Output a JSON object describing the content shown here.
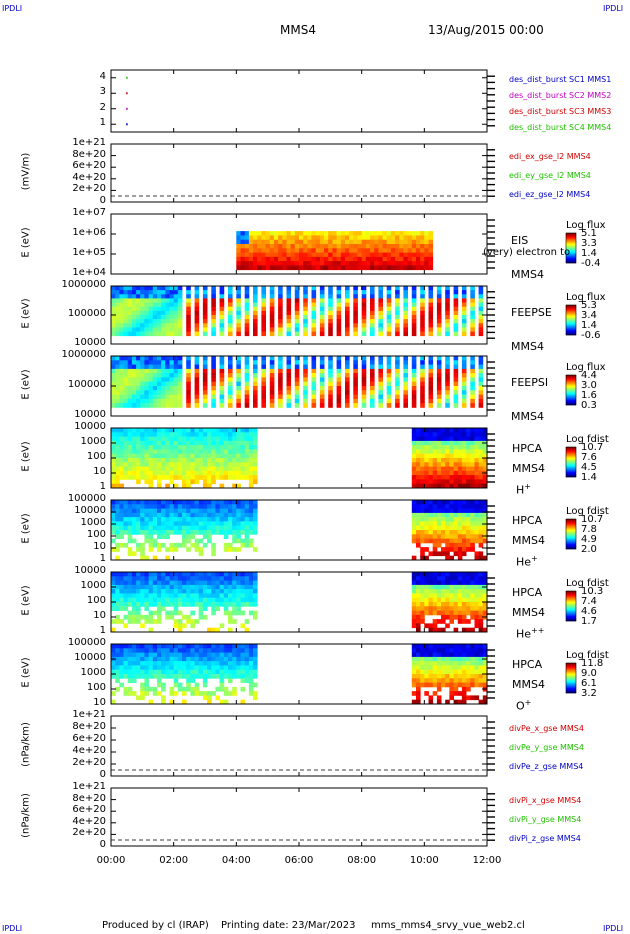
{
  "header": {
    "corner_tl": "IPDLI",
    "corner_tr": "IPDLI",
    "corner_bl": "IPDLI",
    "corner_br": "IPDLI",
    "spacecraft": "MMS4",
    "date": "13/Aug/2015 00:00"
  },
  "footer": {
    "produced": "Produced by cl (IRAP)",
    "printing": "Printing date: 23/Mar/2023",
    "file": "mms_mms4_srvy_vue_web2.cl"
  },
  "colors": {
    "blue": "#0000c0",
    "magenta": "#c000c0",
    "red": "#d00000",
    "green": "#20c000"
  },
  "chart_data": [
    {
      "type": "scatter",
      "panel": "burst",
      "xlabel": "",
      "ylabel": "",
      "xlim": [
        "00:00",
        "12:00"
      ],
      "yticks": [
        "4",
        "3",
        "2",
        "1"
      ],
      "series": [
        {
          "name": "des_dist_burst SC1 MMS1",
          "color": "#0000c0",
          "x": [
            "00:30"
          ],
          "y": [
            1
          ]
        },
        {
          "name": "des_dist_burst SC2 MMS2",
          "color": "#c000c0",
          "x": [
            "00:30"
          ],
          "y": [
            2
          ]
        },
        {
          "name": "des_dist_burst SC3 MMS3",
          "color": "#d00000",
          "x": [
            "00:30"
          ],
          "y": [
            3
          ]
        },
        {
          "name": "des_dist_burst SC4 MMS4",
          "color": "#20c000",
          "x": [
            "00:30"
          ],
          "y": [
            4
          ]
        }
      ]
    },
    {
      "type": "line",
      "panel": "edi",
      "ylabel": "(mV/m)",
      "yticks": [
        "1e+21",
        "8e+20",
        "6e+20",
        "4e+20",
        "2e+20",
        "0"
      ],
      "series": [
        {
          "name": "edi_ex_gse_l2 MMS4",
          "color": "#d00000"
        },
        {
          "name": "edi_ey_gse_l2 MMS4",
          "color": "#20c000"
        },
        {
          "name": "edi_ez_gse_l2 MMS4",
          "color": "#0000c0"
        }
      ]
    },
    {
      "type": "heatmap",
      "panel": "eis",
      "ylabel": "E (eV)",
      "yticks": [
        "1e+07",
        "1e+06",
        "1e+05",
        "1e+04"
      ],
      "labels": [
        "EIS",
        "MMS4"
      ],
      "overlay": "(very) electron to",
      "cb_title": "Log flux",
      "cb_ticks": [
        "5.1",
        "3.3",
        "1.4",
        "-0.4"
      ],
      "time_range": [
        "04:00",
        "10:15"
      ]
    },
    {
      "type": "heatmap",
      "panel": "feepse",
      "ylabel": "E (eV)",
      "yticks": [
        "1000000",
        "100000",
        "10000"
      ],
      "labels": [
        "FEEPSE",
        "MMS4"
      ],
      "cb_title": "Log flux",
      "cb_ticks": [
        "5.3",
        "3.4",
        "1.4",
        "-0.6"
      ],
      "time_range": [
        "00:00",
        "12:00"
      ]
    },
    {
      "type": "heatmap",
      "panel": "feepsi",
      "ylabel": "E (eV)",
      "yticks": [
        "1000000",
        "100000",
        "10000"
      ],
      "labels": [
        "FEEPSI",
        "MMS4"
      ],
      "cb_title": "Log flux",
      "cb_ticks": [
        "4.4",
        "3.0",
        "1.6",
        "0.3"
      ],
      "time_range": [
        "00:00",
        "12:00"
      ]
    },
    {
      "type": "heatmap",
      "panel": "hpca_h",
      "ylabel": "E (eV)",
      "yticks": [
        "10000",
        "1000",
        "100",
        "10",
        "1"
      ],
      "labels": [
        "HPCA",
        "MMS4"
      ],
      "species": "H",
      "species_sup": "+",
      "cb_title": "Log fdist",
      "cb_ticks": [
        "10.7",
        "7.6",
        "4.5",
        "1.4"
      ],
      "time_range": [
        "00:00",
        "04:40",
        "09:40",
        "12:00"
      ]
    },
    {
      "type": "heatmap",
      "panel": "hpca_he",
      "ylabel": "E (eV)",
      "yticks": [
        "100000",
        "10000",
        "1000",
        "100",
        "10",
        "1"
      ],
      "labels": [
        "HPCA",
        "MMS4"
      ],
      "species": "He",
      "species_sup": "+",
      "cb_title": "Log fdist",
      "cb_ticks": [
        "10.7",
        "7.8",
        "4.9",
        "2.0"
      ],
      "time_range": [
        "00:00",
        "04:40",
        "09:40",
        "12:00"
      ]
    },
    {
      "type": "heatmap",
      "panel": "hpca_hepp",
      "ylabel": "E (eV)",
      "yticks": [
        "10000",
        "1000",
        "100",
        "10",
        "1"
      ],
      "labels": [
        "HPCA",
        "MMS4"
      ],
      "species": "He",
      "species_sup": "++",
      "cb_title": "Log fdist",
      "cb_ticks": [
        "10.3",
        "7.4",
        "4.6",
        "1.7"
      ],
      "time_range": [
        "00:00",
        "04:40",
        "09:40",
        "12:00"
      ]
    },
    {
      "type": "heatmap",
      "panel": "hpca_o",
      "ylabel": "E (eV)",
      "yticks": [
        "100000",
        "10000",
        "1000",
        "100",
        "10"
      ],
      "labels": [
        "HPCA",
        "MMS4"
      ],
      "species": "O",
      "species_sup": "+",
      "cb_title": "Log fdist",
      "cb_ticks": [
        "11.8",
        "9.0",
        "6.1",
        "3.2"
      ],
      "time_range": [
        "00:00",
        "04:40",
        "09:40",
        "12:00"
      ]
    },
    {
      "type": "line",
      "panel": "divpe",
      "ylabel": "(nPa/km)",
      "yticks": [
        "1e+21",
        "8e+20",
        "6e+20",
        "4e+20",
        "2e+20",
        "0"
      ],
      "series": [
        {
          "name": "divPe_x_gse MMS4",
          "color": "#d00000"
        },
        {
          "name": "divPe_y_gse MMS4",
          "color": "#20c000"
        },
        {
          "name": "divPe_z_gse MMS4",
          "color": "#0000c0"
        }
      ]
    },
    {
      "type": "line",
      "panel": "divpi",
      "ylabel": "(nPa/km)",
      "yticks": [
        "1e+21",
        "8e+20",
        "6e+20",
        "4e+20",
        "2e+20",
        "0"
      ],
      "series": [
        {
          "name": "divPi_x_gse MMS4",
          "color": "#d00000"
        },
        {
          "name": "divPi_y_gse MMS4",
          "color": "#20c000"
        },
        {
          "name": "divPi_z_gse MMS4",
          "color": "#0000c0"
        }
      ]
    }
  ],
  "xaxis": {
    "ticks": [
      "00:00",
      "02:00",
      "04:00",
      "06:00",
      "08:00",
      "10:00",
      "12:00"
    ]
  }
}
